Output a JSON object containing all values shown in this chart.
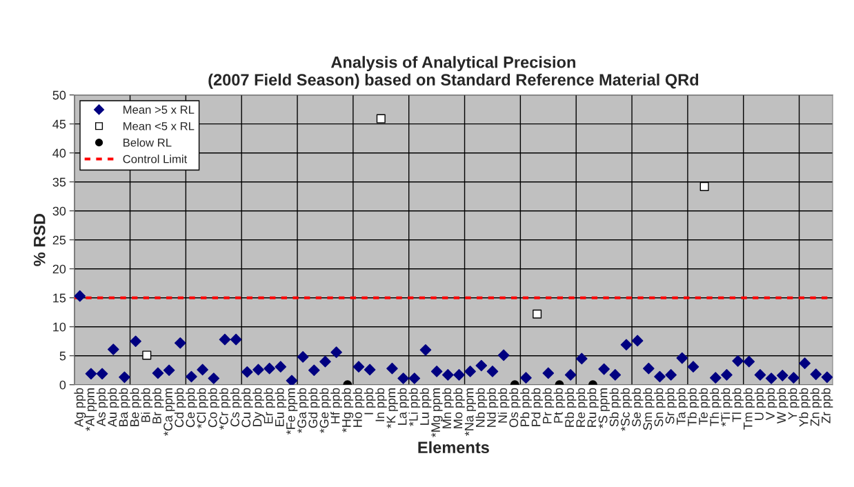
{
  "chart_data": {
    "type": "scatter",
    "title": "Analysis of Analytical Precision\n(2007 Field Season) based on Standard Reference Material QRd",
    "xlabel": "Elements",
    "ylabel": "% RSD",
    "categories": [
      "Ag ppb",
      "*Al ppm",
      "As ppb",
      "Au ppb",
      "Ba ppb",
      "Be ppb",
      "Bi ppb",
      "Br ppb",
      "*Ca ppm",
      "Cd ppb",
      "Ce ppb",
      "*Cl ppb",
      "Co ppb",
      "*Cr ppb",
      "Cs ppb",
      "Cu ppb",
      "Dy ppb",
      "Er ppb",
      "Eu ppb",
      "*Fe ppm",
      "*Ga ppb",
      "Gd ppb",
      "*Ge ppb",
      "Hf ppb",
      "*Hg ppb",
      "Ho ppb",
      "I ppb",
      "In ppb",
      "*K ppm",
      "La ppb",
      "*Li ppb",
      "Lu ppb",
      "*Mg ppm",
      "Mn ppb",
      "Mo ppb",
      "*Na ppm",
      "Nb ppb",
      "Nd ppb",
      "Ni ppb",
      "Os ppb",
      "Pb ppb",
      "Pd ppb",
      "Pr ppb",
      "Pt ppb",
      "Rb ppb",
      "Re ppb",
      "Ru ppb",
      "*S ppm",
      "Sb ppb",
      "*Sc ppb",
      "Se ppb",
      "Sm ppb",
      "Sn ppb",
      "Sr ppb",
      "Ta ppb",
      "Tb ppb",
      "Te ppb",
      "Th ppb",
      "*Ti ppb",
      "Tl ppb",
      "Tm ppb",
      "U ppb",
      "V ppb",
      "W ppb",
      "Y ppb",
      "Yb ppb",
      "Zn ppb",
      "Zr ppb"
    ],
    "series": [
      {
        "name": "Mean >5 x RL",
        "color": "#000080",
        "marker": "diamond",
        "values": [
          15.3,
          1.9,
          1.9,
          6.1,
          1.3,
          7.5,
          null,
          2.0,
          2.5,
          7.2,
          1.4,
          2.6,
          1.1,
          7.8,
          7.8,
          2.2,
          2.6,
          2.8,
          3.1,
          0.7,
          4.8,
          2.5,
          4.0,
          5.6,
          null,
          3.1,
          2.6,
          null,
          2.8,
          1.1,
          1.1,
          6.0,
          2.3,
          1.7,
          1.7,
          2.3,
          3.3,
          2.3,
          5.1,
          null,
          1.2,
          null,
          2.0,
          null,
          1.7,
          4.5,
          null,
          2.7,
          1.7,
          6.9,
          7.6,
          2.8,
          1.4,
          1.7,
          4.6,
          3.1,
          null,
          1.2,
          1.7,
          4.1,
          4.0,
          1.7,
          1.1,
          1.6,
          1.2,
          3.7,
          1.8,
          1.3
        ]
      },
      {
        "name": "Mean <5 x RL",
        "color": "#ffffff",
        "marker": "square",
        "values": [
          null,
          null,
          null,
          null,
          null,
          null,
          5.1,
          null,
          null,
          null,
          null,
          null,
          null,
          null,
          null,
          null,
          null,
          null,
          null,
          null,
          null,
          null,
          null,
          null,
          null,
          null,
          null,
          45.9,
          null,
          null,
          null,
          null,
          null,
          null,
          null,
          null,
          null,
          null,
          null,
          null,
          null,
          12.2,
          null,
          null,
          null,
          null,
          null,
          null,
          null,
          null,
          null,
          null,
          null,
          null,
          null,
          null,
          34.2,
          null,
          null,
          null,
          null,
          null,
          null,
          null,
          null,
          null,
          null,
          null
        ]
      },
      {
        "name": "Below RL",
        "color": "#000000",
        "marker": "circle",
        "values": [
          null,
          null,
          null,
          null,
          null,
          null,
          null,
          null,
          null,
          null,
          null,
          null,
          null,
          null,
          null,
          null,
          null,
          null,
          null,
          null,
          null,
          null,
          null,
          null,
          0,
          null,
          null,
          null,
          null,
          null,
          null,
          null,
          null,
          null,
          null,
          null,
          null,
          null,
          null,
          0,
          null,
          null,
          null,
          0,
          null,
          null,
          0,
          null,
          null,
          null,
          null,
          null,
          null,
          null,
          null,
          null,
          null,
          null,
          null,
          null,
          null,
          null,
          null,
          null,
          null,
          null,
          null,
          null
        ]
      }
    ],
    "ref_lines": [
      {
        "axis": "y",
        "value": 15,
        "label": "Control Limit",
        "color": "#ff0000",
        "line_style": "dashed"
      }
    ],
    "ylim": [
      0,
      50
    ],
    "yticks": [
      0,
      5,
      10,
      15,
      20,
      25,
      30,
      35,
      40,
      45,
      50
    ],
    "grid": true,
    "legend": "top left"
  }
}
